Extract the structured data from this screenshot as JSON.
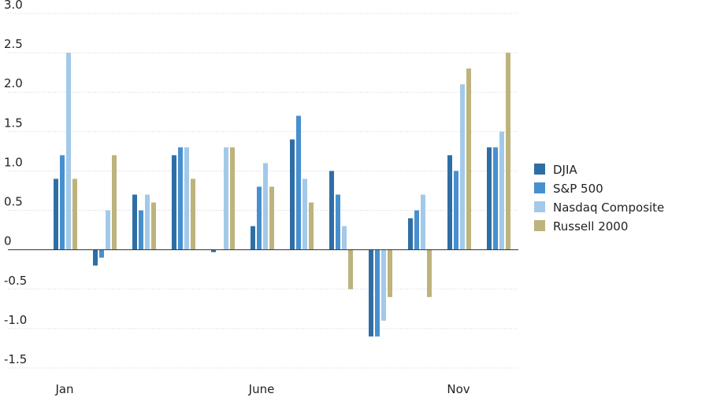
{
  "chart_data": {
    "type": "bar",
    "categories": [
      "Jan",
      null,
      null,
      null,
      null,
      "June",
      null,
      null,
      null,
      null,
      "Nov",
      null
    ],
    "series": [
      {
        "name": "DJIA",
        "color": "#2f6ea5",
        "values": [
          0.9,
          -0.2,
          0.7,
          1.2,
          -0.03,
          0.3,
          1.4,
          1.0,
          -1.1,
          0.4,
          1.2,
          1.3
        ]
      },
      {
        "name": "S&P 500",
        "color": "#4790d0",
        "values": [
          1.2,
          -0.1,
          0.5,
          1.3,
          0,
          0.8,
          1.7,
          0.7,
          -1.1,
          0.5,
          1.0,
          1.3
        ]
      },
      {
        "name": "Nasdaq Composite",
        "color": "#a3c9e9",
        "values": [
          2.5,
          0.5,
          0.7,
          1.3,
          1.3,
          1.1,
          0.9,
          0.3,
          -0.9,
          0.7,
          2.1,
          1.5
        ]
      },
      {
        "name": "Russell 2000",
        "color": "#bdb37d",
        "values": [
          0.9,
          1.2,
          0.6,
          0.9,
          1.3,
          0.8,
          0.6,
          -0.5,
          -0.6,
          -0.6,
          2.3,
          2.5
        ]
      }
    ],
    "ylim": [
      -1.5,
      3.0
    ],
    "yticks": [
      {
        "value": 3.0,
        "label": "3.0"
      },
      2.5,
      {
        "value": 2.0,
        "label": "2.0"
      },
      1.5,
      {
        "value": 1.0,
        "label": "1.0"
      },
      0.5,
      0,
      -0.5,
      {
        "value": -1.0,
        "label": "-1.0"
      },
      -1.5
    ],
    "grid": true,
    "legend": "right"
  }
}
